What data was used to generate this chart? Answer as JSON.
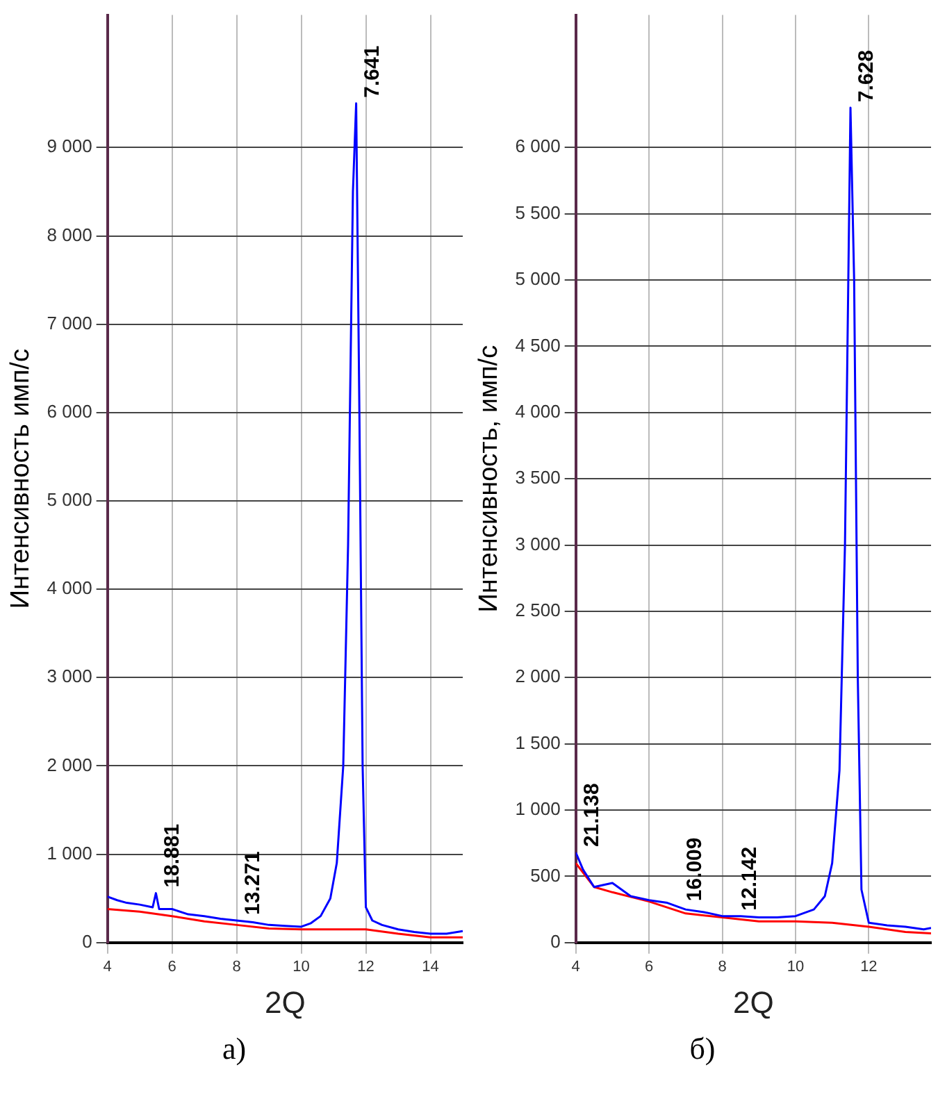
{
  "chart_data": [
    {
      "type": "line",
      "title": "а)",
      "xlabel": "2Q",
      "ylabel": "Интенсивность имп/с",
      "grid": true,
      "legend": false,
      "marker": "none",
      "xlim": [
        4,
        15
      ],
      "xticks": [
        4,
        6,
        8,
        10,
        12,
        14
      ],
      "ylim": [
        0,
        10500
      ],
      "yticks": [
        {
          "value": 0,
          "label": "0"
        },
        {
          "value": 1000,
          "label": "1 000"
        },
        {
          "value": 2000,
          "label": "2 000"
        },
        {
          "value": 3000,
          "label": "3 000"
        },
        {
          "value": 4000,
          "label": "4 000"
        },
        {
          "value": 5000,
          "label": "5 000"
        },
        {
          "value": 6000,
          "label": "6 000"
        },
        {
          "value": 7000,
          "label": "7 000"
        },
        {
          "value": 8000,
          "label": "8 000"
        },
        {
          "value": 9000,
          "label": "9 000"
        }
      ],
      "annotations": [
        {
          "text": "7.641",
          "x": 11.7,
          "y": 9500
        },
        {
          "text": "18.881",
          "x": 5.5,
          "y": 560
        },
        {
          "text": "13.271",
          "x": 8,
          "y": 250
        }
      ],
      "series": [
        {
          "color": "#0000ff",
          "x": [
            4,
            4.3,
            4.6,
            5,
            5.4,
            5.5,
            5.6,
            6,
            6.5,
            7,
            7.5,
            8,
            8.5,
            9,
            9.5,
            10,
            10.3,
            10.6,
            10.9,
            11.1,
            11.3,
            11.45,
            11.6,
            11.7,
            11.8,
            11.9,
            12,
            12.2,
            12.5,
            13,
            13.5,
            14,
            14.5,
            15
          ],
          "values": [
            520,
            480,
            450,
            430,
            400,
            560,
            380,
            380,
            320,
            300,
            270,
            250,
            230,
            200,
            190,
            180,
            220,
            300,
            500,
            900,
            2000,
            4500,
            8500,
            9500,
            6000,
            2000,
            400,
            250,
            200,
            150,
            120,
            100,
            100,
            130
          ]
        },
        {
          "color": "#ff0000",
          "x": [
            4,
            5,
            6,
            7,
            8,
            9,
            10,
            11,
            12,
            13,
            14,
            15
          ],
          "values": [
            380,
            350,
            300,
            240,
            200,
            160,
            150,
            150,
            150,
            100,
            60,
            60
          ]
        }
      ]
    },
    {
      "type": "line",
      "title": "б)",
      "xlabel": "2Q",
      "ylabel": "Интенсивность, имп/с",
      "grid": true,
      "legend": false,
      "marker": "none",
      "xlim": [
        4,
        13.7
      ],
      "xticks": [
        4,
        6,
        8,
        10,
        12
      ],
      "ylim": [
        0,
        7000
      ],
      "yticks": [
        {
          "value": 0,
          "label": "0"
        },
        {
          "value": 500,
          "label": "500"
        },
        {
          "value": 1000,
          "label": "1 000"
        },
        {
          "value": 1500,
          "label": "1 500"
        },
        {
          "value": 2000,
          "label": "2 000"
        },
        {
          "value": 2500,
          "label": "2 500"
        },
        {
          "value": 3000,
          "label": "3 000"
        },
        {
          "value": 3500,
          "label": "3 500"
        },
        {
          "value": 4000,
          "label": "4 000"
        },
        {
          "value": 4500,
          "label": "4 500"
        },
        {
          "value": 5000,
          "label": "5 000"
        },
        {
          "value": 5500,
          "label": "5 500"
        },
        {
          "value": 6000,
          "label": "6 000"
        }
      ],
      "annotations": [
        {
          "text": "7.628",
          "x": 11.5,
          "y": 6300
        },
        {
          "text": "21.138",
          "x": 4,
          "y": 680
        },
        {
          "text": "16.009",
          "x": 6.8,
          "y": 270
        },
        {
          "text": "12.142",
          "x": 8.3,
          "y": 200
        }
      ],
      "series": [
        {
          "color": "#0000ff",
          "x": [
            4,
            4.2,
            4.5,
            5,
            5.5,
            6,
            6.5,
            6.8,
            7,
            7.5,
            8,
            8.3,
            8.5,
            9,
            9.5,
            10,
            10.5,
            10.8,
            11,
            11.2,
            11.35,
            11.5,
            11.6,
            11.7,
            11.8,
            12,
            12.5,
            13,
            13.5,
            13.7
          ],
          "values": [
            680,
            550,
            420,
            450,
            350,
            320,
            300,
            270,
            250,
            230,
            200,
            200,
            200,
            190,
            190,
            200,
            250,
            350,
            600,
            1300,
            3000,
            6300,
            5000,
            2000,
            400,
            150,
            130,
            120,
            100,
            110
          ]
        },
        {
          "color": "#ff0000",
          "x": [
            4,
            4.5,
            5,
            6,
            7,
            8,
            9,
            10,
            11,
            12,
            13,
            13.7
          ],
          "values": [
            600,
            420,
            380,
            310,
            220,
            190,
            160,
            160,
            150,
            120,
            80,
            70
          ]
        }
      ]
    }
  ]
}
